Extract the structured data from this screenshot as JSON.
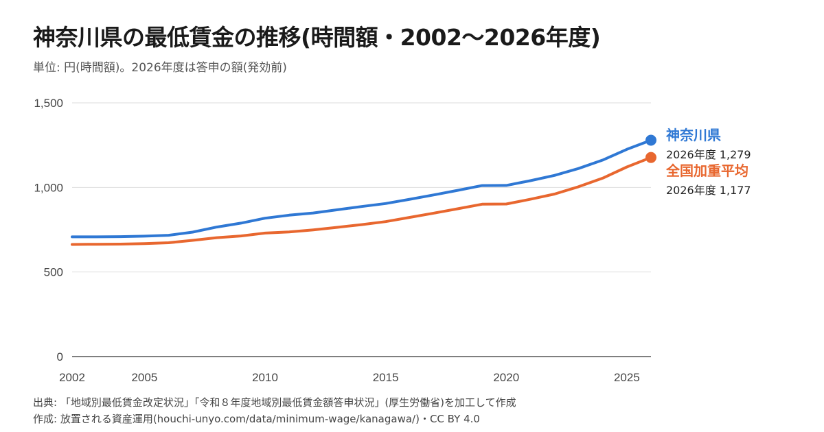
{
  "title": "神奈川県の最低賃金の推移(時間額・2002〜2026年度)",
  "subtitle": "単位: 円(時間額)。2026年度は答申の額(発効前)",
  "footer": {
    "source": "出典: 「地域別最低賃金改定状況」「令和８年度地域別最低賃金額答申状況」(厚生労働省)を加工して作成",
    "credit": "作成: 放置される資産運用(houchi-unyo.com/data/minimum-wage/kanagawa/)・CC BY 4.0"
  },
  "colors": {
    "kanagawa": "#2f78d4",
    "national": "#e8672f"
  },
  "chart_data": {
    "type": "line",
    "title": "神奈川県の最低賃金の推移(時間額・2002〜2026年度)",
    "ylabel": "",
    "xlabel": "",
    "ylim": [
      0,
      1500
    ],
    "xlim": [
      2002,
      2026
    ],
    "yticks": [
      0,
      500,
      1000,
      1500
    ],
    "ytick_labels": [
      "0",
      "500",
      "1,000",
      "1,500"
    ],
    "xticks": [
      2002,
      2005,
      2010,
      2015,
      2020,
      2025
    ],
    "xtick_labels": [
      "2002",
      "2005",
      "2010",
      "2015",
      "2020",
      "2025"
    ],
    "grid": true,
    "legend": "direct labels at line ends (right)",
    "x": [
      2002,
      2003,
      2004,
      2005,
      2006,
      2007,
      2008,
      2009,
      2010,
      2011,
      2012,
      2013,
      2014,
      2015,
      2016,
      2017,
      2018,
      2019,
      2020,
      2021,
      2022,
      2023,
      2024,
      2025,
      2026
    ],
    "series": [
      {
        "name": "神奈川県",
        "end_label": "2026年度 1,279",
        "values": [
          708,
          708,
          709,
          712,
          717,
          736,
          766,
          789,
          818,
          836,
          849,
          868,
          887,
          905,
          930,
          956,
          983,
          1011,
          1012,
          1040,
          1071,
          1112,
          1162,
          1225,
          1279
        ]
      },
      {
        "name": "全国加重平均",
        "end_label": "2026年度 1,177",
        "values": [
          663,
          664,
          665,
          668,
          673,
          687,
          703,
          713,
          730,
          737,
          749,
          764,
          780,
          798,
          823,
          848,
          874,
          901,
          902,
          930,
          961,
          1004,
          1055,
          1121,
          1177
        ]
      }
    ]
  }
}
